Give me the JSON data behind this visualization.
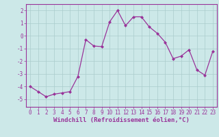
{
  "x": [
    0,
    1,
    2,
    3,
    4,
    5,
    6,
    7,
    8,
    9,
    10,
    11,
    12,
    13,
    14,
    15,
    16,
    17,
    18,
    19,
    20,
    21,
    22,
    23
  ],
  "y": [
    -4.0,
    -4.4,
    -4.8,
    -4.6,
    -4.5,
    -4.4,
    -3.2,
    -0.3,
    -0.8,
    -0.85,
    1.1,
    2.0,
    0.8,
    1.5,
    1.5,
    0.7,
    0.2,
    -0.5,
    -1.8,
    -1.6,
    -1.1,
    -2.7,
    -3.1,
    -1.2
  ],
  "line_color": "#993399",
  "marker": "D",
  "marker_size": 2,
  "bg_color": "#cce8e8",
  "grid_color": "#aacccc",
  "xlabel": "Windchill (Refroidissement éolien,°C)",
  "xlim": [
    -0.5,
    23.5
  ],
  "ylim": [
    -5.6,
    2.5
  ],
  "yticks": [
    -5,
    -4,
    -3,
    -2,
    -1,
    0,
    1,
    2
  ],
  "xticks": [
    0,
    1,
    2,
    3,
    4,
    5,
    6,
    7,
    8,
    9,
    10,
    11,
    12,
    13,
    14,
    15,
    16,
    17,
    18,
    19,
    20,
    21,
    22,
    23
  ],
  "tick_color": "#993399",
  "label_color": "#993399",
  "tick_fontsize": 5.5,
  "xlabel_fontsize": 6.5,
  "linewidth": 0.9
}
